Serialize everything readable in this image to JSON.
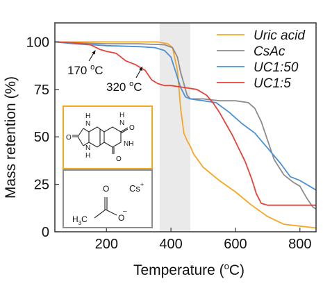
{
  "chart_data": {
    "type": "line",
    "title": "",
    "xlabel_prefix": "Temperature (",
    "xlabel_unit": "C)",
    "xlabel_sup": "o",
    "ylabel": "Mass retention (%)",
    "xlim": [
      40,
      850
    ],
    "ylim": [
      0,
      110
    ],
    "xticks": [
      200,
      400,
      600,
      800
    ],
    "yticks": [
      0,
      25,
      50,
      75,
      100
    ],
    "grid": false,
    "legend_position": "top-right",
    "shaded_region": [
      365,
      460
    ],
    "series": [
      {
        "name": "Uric acid",
        "color": "#f5a623",
        "x": [
          40,
          100,
          200,
          300,
          360,
          390,
          405,
          420,
          430,
          440,
          450,
          460,
          470,
          500,
          550,
          600,
          650,
          700,
          750,
          800,
          850
        ],
        "y": [
          100,
          100,
          100,
          100,
          100,
          99,
          97,
          85,
          65,
          52,
          48,
          45,
          41,
          34,
          27,
          21,
          14,
          8,
          4,
          3,
          2
        ]
      },
      {
        "name": "CsAc",
        "color": "#8c8c8c",
        "x": [
          40,
          100,
          200,
          300,
          380,
          405,
          420,
          430,
          440,
          450,
          460,
          500,
          550,
          600,
          640,
          660,
          680,
          700,
          720,
          750,
          780,
          800,
          820,
          840,
          850
        ],
        "y": [
          100,
          99.5,
          99,
          99,
          98.5,
          97,
          92,
          84,
          78,
          72,
          70,
          70,
          69,
          69,
          68,
          65,
          58,
          48,
          38,
          30,
          26,
          24,
          18,
          13,
          12
        ]
      },
      {
        "name": "UC1:50",
        "color": "#4a90d9",
        "x": [
          40,
          100,
          200,
          300,
          350,
          380,
          400,
          415,
          430,
          445,
          460,
          500,
          540,
          580,
          620,
          660,
          700,
          740,
          770,
          800,
          830,
          850
        ],
        "y": [
          100,
          99,
          98,
          97.5,
          97,
          95.5,
          92,
          84,
          76,
          71,
          70,
          69,
          68,
          63,
          57,
          52,
          44,
          36,
          29,
          27,
          24,
          22
        ]
      },
      {
        "name": "UC1:5",
        "color": "#e8413a",
        "x": [
          40,
          100,
          150,
          180,
          200,
          230,
          260,
          290,
          320,
          340,
          360,
          380,
          400,
          440,
          480,
          510,
          530,
          550,
          570,
          590,
          610,
          630,
          650,
          665,
          680,
          700,
          750,
          800,
          850
        ],
        "y": [
          100,
          99.5,
          98.5,
          96,
          95,
          94,
          90,
          88,
          85,
          80,
          78,
          77,
          77,
          76,
          75,
          72,
          68,
          63,
          57,
          51,
          44,
          37,
          28,
          20,
          15,
          14,
          14,
          14,
          14
        ]
      }
    ],
    "annotations": [
      {
        "text": "170",
        "unit": "C",
        "sup": "o",
        "x": 170,
        "y": 97
      },
      {
        "text": "320",
        "unit": "C",
        "sup": "o",
        "x": 320,
        "y": 88
      }
    ],
    "insets": {
      "uric_acid": {
        "labels": [
          "H",
          "H",
          "N",
          "N",
          "O",
          "O",
          "O",
          "NH",
          "N",
          "H"
        ]
      },
      "csac": {
        "cation": "Cs",
        "cation_charge": "+",
        "oxygen_top": "O",
        "oxygen_right": "O",
        "anion_charge": "–",
        "methyl": "H",
        "methyl_sub": "3",
        "methyl_c": "C"
      }
    }
  }
}
